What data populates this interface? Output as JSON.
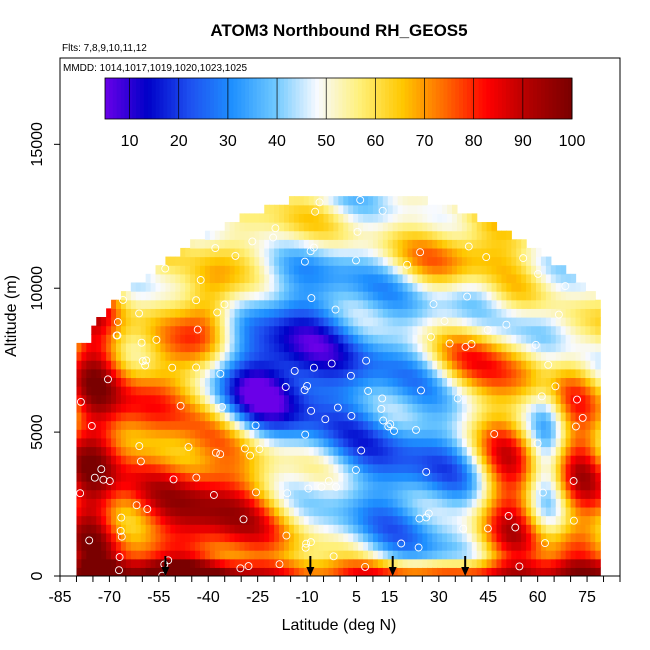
{
  "chart_data": {
    "type": "heatmap",
    "title": "ATOM3 Northbound RH_GEOS5",
    "subtitle_flights": "Flts: 7,8,9,10,11,12",
    "subtitle_dates": "MMDD: 1014,1017,1019,1020,1023,1025",
    "xlabel": "Latitude (deg N)",
    "ylabel": "Altitude (m)",
    "xlim": [
      -85,
      85
    ],
    "ylim": [
      0,
      18000
    ],
    "x_tick_labels": [
      "-85",
      "-70",
      "-55",
      "-40",
      "-25",
      "-10",
      "5",
      "15",
      "30",
      "45",
      "60",
      "75"
    ],
    "x_tick_values": [
      -85,
      -70,
      -55,
      -40,
      -25,
      -10,
      5,
      15,
      30,
      45,
      60,
      75
    ],
    "y_tick_labels": [
      "0",
      "5000",
      "10000",
      "15000"
    ],
    "y_tick_values": [
      0,
      5000,
      10000,
      15000
    ],
    "colorbar": {
      "range": [
        5,
        100
      ],
      "tick_labels": [
        "10",
        "20",
        "30",
        "40",
        "50",
        "60",
        "70",
        "80",
        "90",
        "100"
      ],
      "tick_values": [
        10,
        20,
        30,
        40,
        50,
        60,
        70,
        80,
        90,
        100
      ]
    },
    "colors": {
      "scale": [
        "#6a00e8",
        "#0000c8",
        "#1e50f0",
        "#1e90ff",
        "#6ec8ff",
        "#f8faff",
        "#fff07a",
        "#ffc800",
        "#ff6a00",
        "#ff0000",
        "#b00000",
        "#7a0000"
      ]
    },
    "arrows_latitude": [
      -53,
      -9,
      16,
      38
    ],
    "grid": false,
    "legend": "top colorbar inside plot"
  }
}
